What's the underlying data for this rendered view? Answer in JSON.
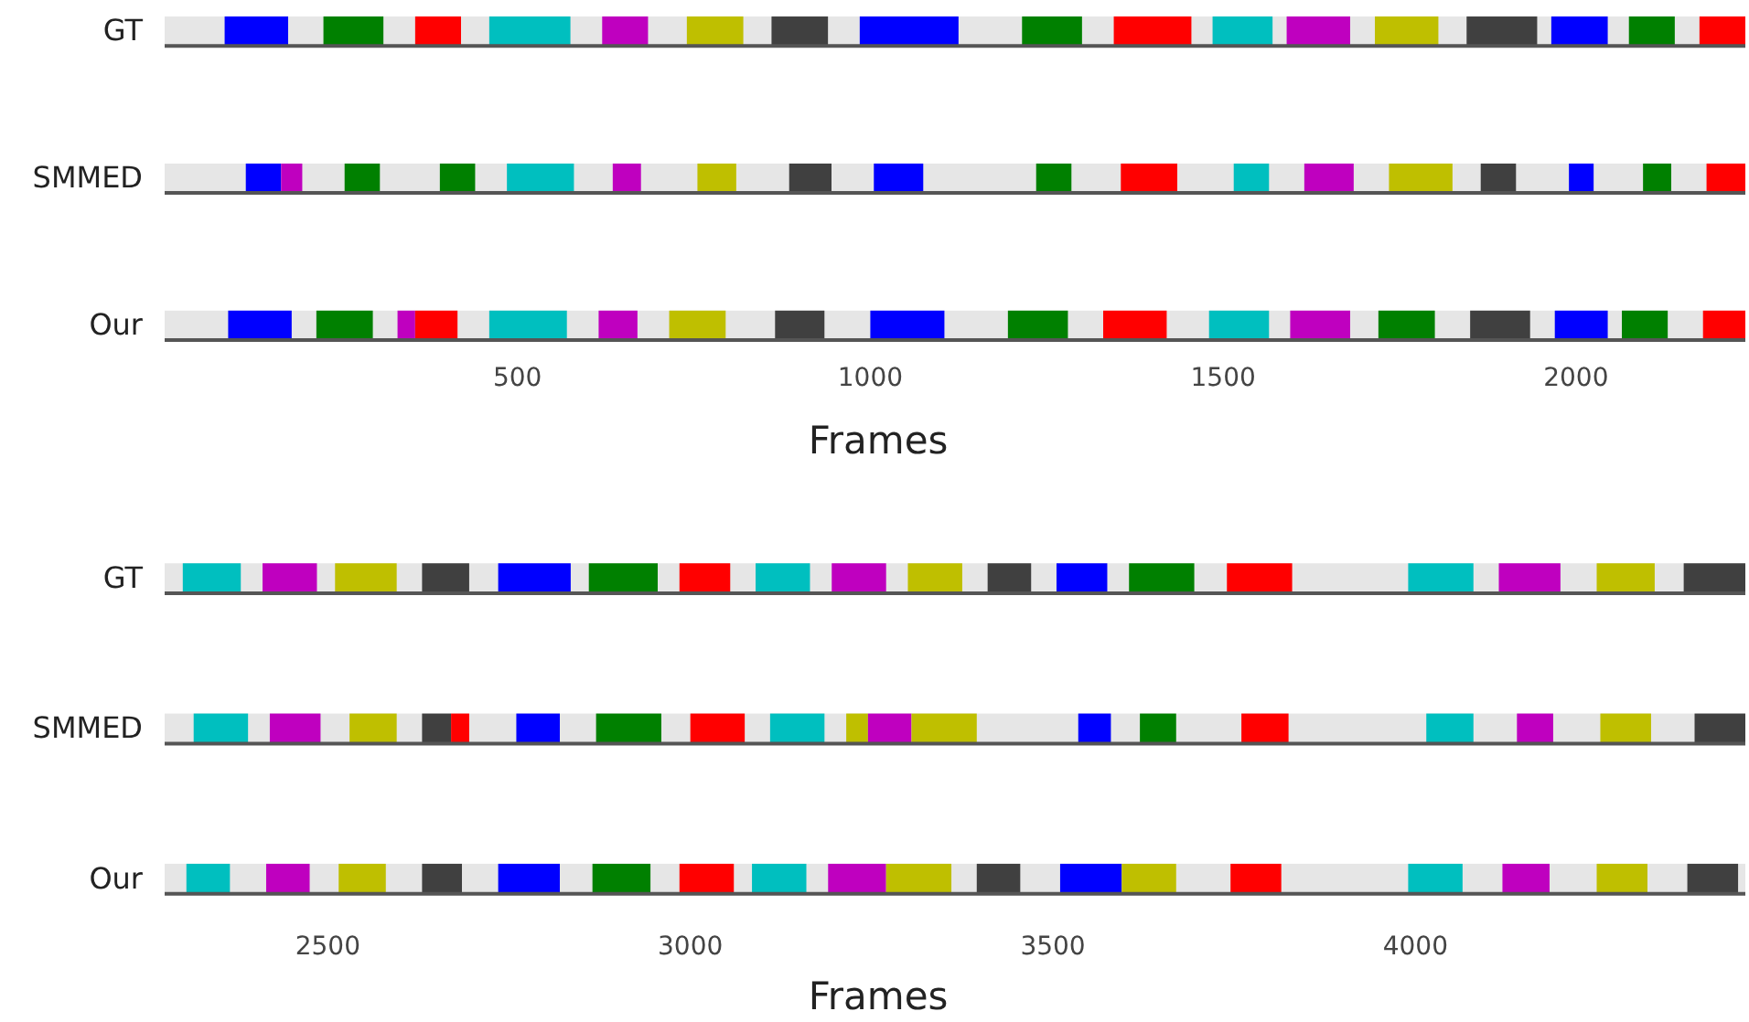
{
  "chart_data": [
    {
      "type": "bar",
      "orientation": "horizontal",
      "xlabel": "Frames",
      "categories": [
        "GT",
        "SMMED",
        "Our"
      ],
      "xlim": [
        0,
        2240
      ],
      "xticks": [
        500,
        1000,
        1500,
        2000
      ],
      "series": [
        {
          "base": [
            85,
            115,
            90
          ],
          "values": [
            90,
            50,
            90
          ],
          "colors": [
            "#0000ff",
            "#0000ff",
            "#0000ff"
          ]
        },
        {
          "base": [
            225,
            165,
            215
          ],
          "values": [
            85,
            30,
            80
          ],
          "colors": [
            "#008000",
            "#bf00bf",
            "#008000"
          ]
        },
        {
          "base": [
            355,
            255,
            330
          ],
          "values": [
            65,
            50,
            25
          ],
          "colors": [
            "#ff0000",
            "#008000",
            "#bf00bf"
          ]
        },
        {
          "base": [
            460,
            390,
            355
          ],
          "values": [
            115,
            50,
            60
          ],
          "colors": [
            "#00bfbf",
            "#008000",
            "#ff0000"
          ]
        },
        {
          "base": [
            620,
            485,
            460
          ],
          "values": [
            65,
            95,
            110
          ],
          "colors": [
            "#bf00bf",
            "#00bfbf",
            "#00bfbf"
          ]
        },
        {
          "base": [
            740,
            635,
            615
          ],
          "values": [
            80,
            40,
            55
          ],
          "colors": [
            "#bfbf00",
            "#bf00bf",
            "#bf00bf"
          ]
        },
        {
          "base": [
            860,
            755,
            715
          ],
          "values": [
            80,
            55,
            80
          ],
          "colors": [
            "#404040",
            "#bfbf00",
            "#bfbf00"
          ]
        },
        {
          "base": [
            985,
            885,
            865
          ],
          "values": [
            140,
            60,
            70
          ],
          "colors": [
            "#0000ff",
            "#404040",
            "#404040"
          ]
        },
        {
          "base": [
            1215,
            1005,
            1000
          ],
          "values": [
            85,
            70,
            105
          ],
          "colors": [
            "#008000",
            "#0000ff",
            "#0000ff"
          ]
        },
        {
          "base": [
            1345,
            1235,
            1195
          ],
          "values": [
            110,
            50,
            85
          ],
          "colors": [
            "#ff0000",
            "#008000",
            "#008000"
          ]
        },
        {
          "base": [
            1485,
            1355,
            1330
          ],
          "values": [
            85,
            80,
            90
          ],
          "colors": [
            "#00bfbf",
            "#ff0000",
            "#ff0000"
          ]
        },
        {
          "base": [
            1590,
            1515,
            1480
          ],
          "values": [
            90,
            50,
            85
          ],
          "colors": [
            "#bf00bf",
            "#00bfbf",
            "#00bfbf"
          ]
        },
        {
          "base": [
            1715,
            1615,
            1595
          ],
          "values": [
            90,
            70,
            85
          ],
          "colors": [
            "#bfbf00",
            "#bf00bf",
            "#bf00bf"
          ]
        },
        {
          "base": [
            1845,
            1735,
            1720
          ],
          "values": [
            100,
            90,
            80
          ],
          "colors": [
            "#404040",
            "#bfbf00",
            "#008000"
          ]
        },
        {
          "base": [
            1965,
            1865,
            1850
          ],
          "values": [
            80,
            50,
            85
          ],
          "colors": [
            "#0000ff",
            "#404040",
            "#404040"
          ]
        },
        {
          "base": [
            2075,
            1990,
            1970
          ],
          "values": [
            65,
            35,
            75
          ],
          "colors": [
            "#008000",
            "#0000ff",
            "#0000ff"
          ]
        },
        {
          "base": [
            2175,
            2095,
            2065
          ],
          "values": [
            65,
            40,
            65
          ],
          "colors": [
            "#ff0000",
            "#008000",
            "#008000"
          ]
        },
        {
          "base": [
            null,
            2185,
            2180
          ],
          "values": [
            null,
            55,
            60
          ],
          "colors": [
            null,
            "#ff0000",
            "#ff0000"
          ]
        }
      ]
    },
    {
      "type": "bar",
      "orientation": "horizontal",
      "xlabel": "Frames",
      "categories": [
        "GT",
        "SMMED",
        "Our"
      ],
      "xlim": [
        2275,
        4455
      ],
      "xticks": [
        2500,
        3000,
        3500,
        4000
      ],
      "series": [
        {
          "base": [
            2300,
            2315,
            2305
          ],
          "values": [
            80,
            75,
            60
          ],
          "colors": [
            "#00bfbf",
            "#00bfbf",
            "#00bfbf"
          ]
        },
        {
          "base": [
            2410,
            2420,
            2415
          ],
          "values": [
            75,
            70,
            60
          ],
          "colors": [
            "#bf00bf",
            "#bf00bf",
            "#bf00bf"
          ]
        },
        {
          "base": [
            2510,
            2530,
            2515
          ],
          "values": [
            85,
            65,
            65
          ],
          "colors": [
            "#bfbf00",
            "#bfbf00",
            "#bfbf00"
          ]
        },
        {
          "base": [
            2630,
            2630,
            2630
          ],
          "values": [
            65,
            40,
            55
          ],
          "colors": [
            "#404040",
            "#404040",
            "#404040"
          ]
        },
        {
          "base": [
            2735,
            2670,
            2735
          ],
          "values": [
            100,
            25,
            85
          ],
          "colors": [
            "#0000ff",
            "#ff0000",
            "#0000ff"
          ]
        },
        {
          "base": [
            2860,
            2760,
            2865
          ],
          "values": [
            95,
            60,
            80
          ],
          "colors": [
            "#008000",
            "#0000ff",
            "#008000"
          ]
        },
        {
          "base": [
            2985,
            2870,
            2985
          ],
          "values": [
            70,
            90,
            75
          ],
          "colors": [
            "#ff0000",
            "#008000",
            "#ff0000"
          ]
        },
        {
          "base": [
            3090,
            3000,
            3085
          ],
          "values": [
            75,
            75,
            75
          ],
          "colors": [
            "#00bfbf",
            "#ff0000",
            "#00bfbf"
          ]
        },
        {
          "base": [
            3195,
            3110,
            3190
          ],
          "values": [
            75,
            75,
            80
          ],
          "colors": [
            "#bf00bf",
            "#00bfbf",
            "#bf00bf"
          ]
        },
        {
          "base": [
            3300,
            3215,
            3270
          ],
          "values": [
            75,
            30,
            90
          ],
          "colors": [
            "#bfbf00",
            "#bfbf00",
            "#bfbf00"
          ]
        },
        {
          "base": [
            3410,
            3245,
            3395
          ],
          "values": [
            60,
            60,
            60
          ],
          "colors": [
            "#404040",
            "#bf00bf",
            "#404040"
          ]
        },
        {
          "base": [
            3505,
            3305,
            3510
          ],
          "values": [
            70,
            90,
            85
          ],
          "colors": [
            "#0000ff",
            "#bfbf00",
            "#0000ff"
          ]
        },
        {
          "base": [
            3605,
            3535,
            3595
          ],
          "values": [
            90,
            45,
            75
          ],
          "colors": [
            "#008000",
            "#0000ff",
            "#bfbf00"
          ]
        },
        {
          "base": [
            3740,
            3620,
            3745
          ],
          "values": [
            90,
            50,
            70
          ],
          "colors": [
            "#ff0000",
            "#008000",
            "#ff0000"
          ]
        },
        {
          "base": [
            3990,
            3760,
            3990
          ],
          "values": [
            90,
            65,
            75
          ],
          "colors": [
            "#00bfbf",
            "#ff0000",
            "#00bfbf"
          ]
        },
        {
          "base": [
            4115,
            4015,
            4120
          ],
          "values": [
            85,
            65,
            65
          ],
          "colors": [
            "#bf00bf",
            "#00bfbf",
            "#bf00bf"
          ]
        },
        {
          "base": [
            4250,
            4140,
            4250
          ],
          "values": [
            80,
            50,
            70
          ],
          "colors": [
            "#bfbf00",
            "#bf00bf",
            "#bfbf00"
          ]
        },
        {
          "base": [
            4370,
            4255,
            4375
          ],
          "values": [
            85,
            70,
            70
          ],
          "colors": [
            "#404040",
            "#bfbf00",
            "#404040"
          ]
        },
        {
          "base": [
            null,
            4385,
            null
          ],
          "values": [
            null,
            70,
            null
          ],
          "colors": [
            null,
            "#404040",
            null
          ]
        }
      ]
    }
  ]
}
